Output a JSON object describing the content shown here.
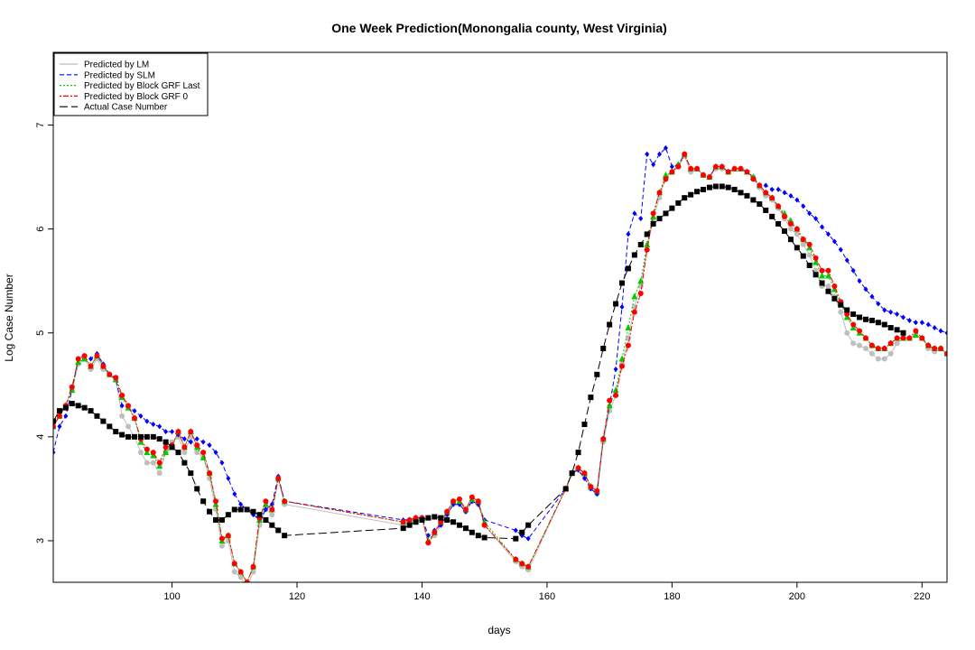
{
  "chart_data": {
    "type": "line",
    "title": "One Week Prediction(Monongalia county, West Virginia)",
    "xlabel": "days",
    "ylabel": "Log Case Number",
    "xlim": [
      81,
      224
    ],
    "ylim": [
      2.6,
      7.7
    ],
    "xticks": [
      100,
      120,
      140,
      160,
      180,
      200,
      220
    ],
    "yticks": [
      3,
      4,
      5,
      6,
      7
    ],
    "legend_position": "top-left",
    "grid": false,
    "series": [
      {
        "name": "Predicted by LM",
        "color": "#bebebe",
        "line": "solid",
        "marker": "circle",
        "x": [
          81,
          82,
          83,
          84,
          85,
          86,
          87,
          88,
          89,
          90,
          91,
          92,
          93,
          94,
          95,
          96,
          97,
          98,
          99,
          100,
          101,
          102,
          103,
          104,
          105,
          106,
          107,
          108,
          109,
          110,
          111,
          112,
          113,
          114,
          115,
          116,
          117,
          118,
          137,
          138,
          139,
          140,
          141,
          142,
          143,
          144,
          145,
          146,
          147,
          148,
          149,
          150,
          155,
          156,
          157,
          163,
          164,
          165,
          166,
          167,
          168,
          169,
          170,
          171,
          172,
          173,
          174,
          175,
          176,
          177,
          178,
          179,
          180,
          181,
          182,
          183,
          184,
          185,
          186,
          187,
          188,
          189,
          190,
          191,
          192,
          193,
          194,
          195,
          196,
          197,
          198,
          199,
          200,
          201,
          202,
          203,
          204,
          205,
          206,
          207,
          208,
          209,
          210,
          211,
          212,
          213,
          214,
          215,
          216,
          217,
          218,
          219,
          220,
          221,
          222,
          223,
          224
        ],
        "y": [
          4.1,
          4.2,
          4.3,
          4.45,
          4.7,
          4.75,
          4.65,
          4.75,
          4.65,
          4.6,
          4.55,
          4.2,
          4.1,
          4.0,
          3.85,
          3.75,
          3.75,
          3.65,
          3.85,
          3.95,
          4.0,
          3.85,
          4.0,
          3.85,
          3.8,
          3.6,
          3.3,
          2.95,
          3.0,
          2.7,
          2.65,
          2.55,
          2.7,
          3.15,
          3.3,
          3.25,
          3.6,
          3.35,
          3.15,
          3.18,
          3.2,
          3.22,
          2.98,
          3.05,
          3.15,
          3.25,
          3.35,
          3.35,
          3.28,
          3.38,
          3.35,
          3.15,
          2.8,
          2.75,
          2.72,
          3.5,
          3.65,
          3.7,
          3.62,
          3.5,
          3.45,
          3.95,
          4.25,
          4.4,
          4.7,
          4.95,
          5.25,
          5.45,
          5.8,
          6.1,
          6.3,
          6.5,
          6.55,
          6.6,
          6.7,
          6.55,
          6.58,
          6.52,
          6.5,
          6.58,
          6.58,
          6.55,
          6.58,
          6.58,
          6.55,
          6.5,
          6.4,
          6.32,
          6.28,
          6.2,
          6.1,
          6.0,
          5.95,
          5.85,
          5.75,
          5.6,
          5.45,
          5.45,
          5.35,
          5.2,
          5.0,
          4.9,
          4.88,
          4.85,
          4.8,
          4.75,
          4.75,
          4.8,
          4.9,
          4.95,
          4.95,
          4.98,
          4.95,
          4.85,
          4.82,
          4.85,
          4.8
        ]
      },
      {
        "name": "Predicted by SLM",
        "color": "#0000ff",
        "line": "dashed",
        "marker": "diamond",
        "x": [
          81,
          82,
          83,
          84,
          85,
          86,
          87,
          88,
          89,
          90,
          91,
          92,
          93,
          94,
          95,
          96,
          97,
          98,
          99,
          100,
          101,
          102,
          103,
          104,
          105,
          106,
          107,
          108,
          109,
          110,
          111,
          112,
          113,
          114,
          115,
          116,
          117,
          118,
          137,
          138,
          139,
          140,
          141,
          142,
          143,
          144,
          145,
          146,
          147,
          148,
          149,
          150,
          155,
          156,
          157,
          163,
          164,
          165,
          166,
          167,
          168,
          169,
          170,
          171,
          172,
          173,
          174,
          175,
          176,
          177,
          178,
          179,
          180,
          181,
          182,
          183,
          184,
          185,
          186,
          187,
          188,
          189,
          190,
          191,
          192,
          193,
          194,
          195,
          196,
          197,
          198,
          199,
          200,
          201,
          202,
          203,
          204,
          205,
          206,
          207,
          208,
          209,
          210,
          211,
          212,
          213,
          214,
          215,
          216,
          217,
          218,
          219,
          220,
          221,
          222,
          223,
          224
        ],
        "y": [
          3.85,
          4.1,
          4.2,
          4.45,
          4.75,
          4.75,
          4.75,
          4.8,
          4.7,
          4.6,
          4.55,
          4.3,
          4.28,
          4.25,
          4.2,
          4.15,
          4.12,
          4.1,
          4.05,
          4.05,
          4.02,
          3.98,
          3.95,
          3.98,
          3.95,
          3.92,
          3.85,
          3.75,
          3.6,
          3.45,
          3.35,
          3.3,
          3.25,
          3.2,
          3.3,
          3.35,
          3.62,
          3.38,
          3.2,
          3.2,
          3.22,
          3.22,
          3.05,
          3.1,
          3.15,
          3.25,
          3.35,
          3.35,
          3.28,
          3.38,
          3.35,
          3.2,
          3.1,
          3.05,
          3.02,
          3.5,
          3.65,
          3.68,
          3.6,
          3.5,
          3.45,
          3.98,
          4.3,
          4.65,
          5.25,
          5.95,
          6.15,
          6.1,
          6.72,
          6.62,
          6.72,
          6.78,
          6.6,
          6.62,
          6.72,
          6.58,
          6.58,
          6.52,
          6.5,
          6.6,
          6.6,
          6.55,
          6.58,
          6.58,
          6.55,
          6.5,
          6.42,
          6.42,
          6.38,
          6.38,
          6.35,
          6.32,
          6.28,
          6.22,
          6.15,
          6.1,
          6.02,
          5.95,
          5.88,
          5.8,
          5.7,
          5.6,
          5.5,
          5.42,
          5.35,
          5.28,
          5.22,
          5.2,
          5.18,
          5.15,
          5.12,
          5.1,
          5.1,
          5.08,
          5.05,
          5.02,
          5.0
        ]
      },
      {
        "name": "Predicted by Block GRF Last",
        "color": "#00cc00",
        "line": "dotted",
        "marker": "triangle",
        "x": [
          81,
          82,
          83,
          84,
          85,
          86,
          87,
          88,
          89,
          90,
          91,
          92,
          93,
          94,
          95,
          96,
          97,
          98,
          99,
          100,
          101,
          102,
          103,
          104,
          105,
          106,
          107,
          108,
          109,
          110,
          111,
          112,
          113,
          114,
          115,
          116,
          117,
          118,
          137,
          138,
          139,
          140,
          141,
          142,
          143,
          144,
          145,
          146,
          147,
          148,
          149,
          150,
          155,
          156,
          157,
          163,
          164,
          165,
          166,
          167,
          168,
          169,
          170,
          171,
          172,
          173,
          174,
          175,
          176,
          177,
          178,
          179,
          180,
          181,
          182,
          183,
          184,
          185,
          186,
          187,
          188,
          189,
          190,
          191,
          192,
          193,
          194,
          195,
          196,
          197,
          198,
          199,
          200,
          201,
          202,
          203,
          204,
          205,
          206,
          207,
          208,
          209,
          210,
          211,
          212,
          213,
          214,
          215,
          216,
          217,
          218,
          219,
          220,
          221,
          222,
          223,
          224
        ],
        "y": [
          4.1,
          4.2,
          4.3,
          4.45,
          4.72,
          4.75,
          4.68,
          4.78,
          4.68,
          4.6,
          4.55,
          4.38,
          4.28,
          4.18,
          3.95,
          3.85,
          3.82,
          3.72,
          3.85,
          3.9,
          4.05,
          3.9,
          4.05,
          3.9,
          3.8,
          3.65,
          3.35,
          3.0,
          3.05,
          2.78,
          2.7,
          2.6,
          2.75,
          3.2,
          3.35,
          3.3,
          3.6,
          3.38,
          3.18,
          3.2,
          3.22,
          3.22,
          3.0,
          3.08,
          3.18,
          3.28,
          3.38,
          3.38,
          3.3,
          3.4,
          3.38,
          3.18,
          2.82,
          2.78,
          2.75,
          3.5,
          3.65,
          3.7,
          3.65,
          3.52,
          3.48,
          3.98,
          4.3,
          4.45,
          4.75,
          5.05,
          5.35,
          5.5,
          5.85,
          6.12,
          6.35,
          6.52,
          6.55,
          6.62,
          6.72,
          6.58,
          6.58,
          6.52,
          6.5,
          6.6,
          6.6,
          6.55,
          6.58,
          6.58,
          6.55,
          6.5,
          6.42,
          6.35,
          6.3,
          6.22,
          6.15,
          6.08,
          6.0,
          5.9,
          5.82,
          5.68,
          5.55,
          5.55,
          5.42,
          5.28,
          5.15,
          5.05,
          5.0,
          4.95,
          4.88,
          4.85,
          4.85,
          4.9,
          4.95,
          4.95,
          4.95,
          4.98,
          4.95,
          4.88,
          4.85,
          4.85,
          4.8
        ]
      },
      {
        "name": "Predicted by Block GRF 0",
        "color": "#ff0000",
        "line": "dotdash",
        "marker": "circle",
        "x": [
          81,
          82,
          83,
          84,
          85,
          86,
          87,
          88,
          89,
          90,
          91,
          92,
          93,
          94,
          95,
          96,
          97,
          98,
          99,
          100,
          101,
          102,
          103,
          104,
          105,
          106,
          107,
          108,
          109,
          110,
          111,
          112,
          113,
          114,
          115,
          116,
          117,
          118,
          137,
          138,
          139,
          140,
          141,
          142,
          143,
          144,
          145,
          146,
          147,
          148,
          149,
          150,
          155,
          156,
          157,
          163,
          164,
          165,
          166,
          167,
          168,
          169,
          170,
          171,
          172,
          173,
          174,
          175,
          176,
          177,
          178,
          179,
          180,
          181,
          182,
          183,
          184,
          185,
          186,
          187,
          188,
          189,
          190,
          191,
          192,
          193,
          194,
          195,
          196,
          197,
          198,
          199,
          200,
          201,
          202,
          203,
          204,
          205,
          206,
          207,
          208,
          209,
          210,
          211,
          212,
          213,
          214,
          215,
          216,
          217,
          218,
          219,
          220,
          221,
          222,
          223,
          224
        ],
        "y": [
          4.1,
          4.2,
          4.3,
          4.48,
          4.75,
          4.78,
          4.68,
          4.78,
          4.68,
          4.6,
          4.57,
          4.4,
          4.3,
          4.18,
          3.98,
          3.88,
          3.85,
          3.75,
          3.9,
          3.92,
          4.05,
          3.9,
          4.05,
          3.92,
          3.85,
          3.65,
          3.38,
          3.02,
          3.05,
          2.78,
          2.7,
          2.6,
          2.75,
          3.22,
          3.38,
          3.3,
          3.6,
          3.38,
          3.18,
          3.2,
          3.22,
          3.22,
          2.98,
          3.08,
          3.18,
          3.28,
          3.38,
          3.4,
          3.3,
          3.42,
          3.38,
          3.15,
          2.82,
          2.78,
          2.75,
          3.5,
          3.65,
          3.7,
          3.65,
          3.52,
          3.48,
          3.98,
          4.35,
          4.4,
          4.68,
          4.88,
          5.2,
          5.38,
          5.8,
          6.15,
          6.35,
          6.48,
          6.55,
          6.6,
          6.72,
          6.58,
          6.58,
          6.52,
          6.5,
          6.6,
          6.6,
          6.55,
          6.58,
          6.58,
          6.55,
          6.48,
          6.42,
          6.35,
          6.3,
          6.22,
          6.12,
          6.05,
          6.0,
          5.9,
          5.85,
          5.72,
          5.6,
          5.6,
          5.45,
          5.3,
          5.18,
          5.08,
          5.02,
          4.95,
          4.88,
          4.85,
          4.85,
          4.9,
          4.95,
          4.95,
          4.95,
          5.02,
          4.95,
          4.88,
          4.85,
          4.85,
          4.8
        ]
      },
      {
        "name": "Actual Case Number",
        "color": "#000000",
        "line": "longdash",
        "marker": "square",
        "x": [
          81,
          82,
          83,
          84,
          85,
          86,
          87,
          88,
          89,
          90,
          91,
          92,
          93,
          94,
          95,
          96,
          97,
          98,
          99,
          100,
          101,
          102,
          103,
          104,
          105,
          106,
          107,
          108,
          109,
          110,
          111,
          112,
          113,
          114,
          115,
          116,
          117,
          118,
          137,
          138,
          139,
          140,
          141,
          142,
          143,
          144,
          145,
          146,
          147,
          148,
          149,
          150,
          155,
          156,
          157,
          163,
          164,
          165,
          166,
          167,
          168,
          169,
          170,
          171,
          172,
          173,
          174,
          175,
          176,
          177,
          178,
          179,
          180,
          181,
          182,
          183,
          184,
          185,
          186,
          187,
          188,
          189,
          190,
          191,
          192,
          193,
          194,
          195,
          196,
          197,
          198,
          199,
          200,
          201,
          202,
          203,
          204,
          205,
          206,
          207,
          208,
          209,
          210,
          211,
          212,
          213,
          214,
          215,
          216,
          217
        ],
        "y": [
          4.15,
          4.25,
          4.28,
          4.32,
          4.3,
          4.28,
          4.25,
          4.2,
          4.15,
          4.1,
          4.05,
          4.02,
          4.0,
          4.0,
          4.0,
          4.0,
          4.0,
          3.98,
          3.95,
          3.9,
          3.85,
          3.75,
          3.65,
          3.5,
          3.38,
          3.28,
          3.2,
          3.2,
          3.25,
          3.3,
          3.3,
          3.3,
          3.28,
          3.25,
          3.2,
          3.15,
          3.1,
          3.05,
          3.12,
          3.15,
          3.18,
          3.2,
          3.22,
          3.23,
          3.22,
          3.2,
          3.18,
          3.15,
          3.12,
          3.08,
          3.05,
          3.03,
          3.02,
          3.08,
          3.15,
          3.5,
          3.65,
          3.85,
          4.12,
          4.38,
          4.6,
          4.85,
          5.08,
          5.28,
          5.48,
          5.62,
          5.75,
          5.85,
          5.95,
          6.05,
          6.1,
          6.15,
          6.2,
          6.25,
          6.3,
          6.33,
          6.36,
          6.38,
          6.4,
          6.41,
          6.41,
          6.4,
          6.38,
          6.35,
          6.32,
          6.28,
          6.24,
          6.18,
          6.12,
          6.05,
          5.98,
          5.9,
          5.82,
          5.74,
          5.65,
          5.56,
          5.48,
          5.4,
          5.33,
          5.27,
          5.22,
          5.18,
          5.15,
          5.13,
          5.12,
          5.1,
          5.08,
          5.05,
          5.03,
          5.0
        ]
      }
    ]
  }
}
